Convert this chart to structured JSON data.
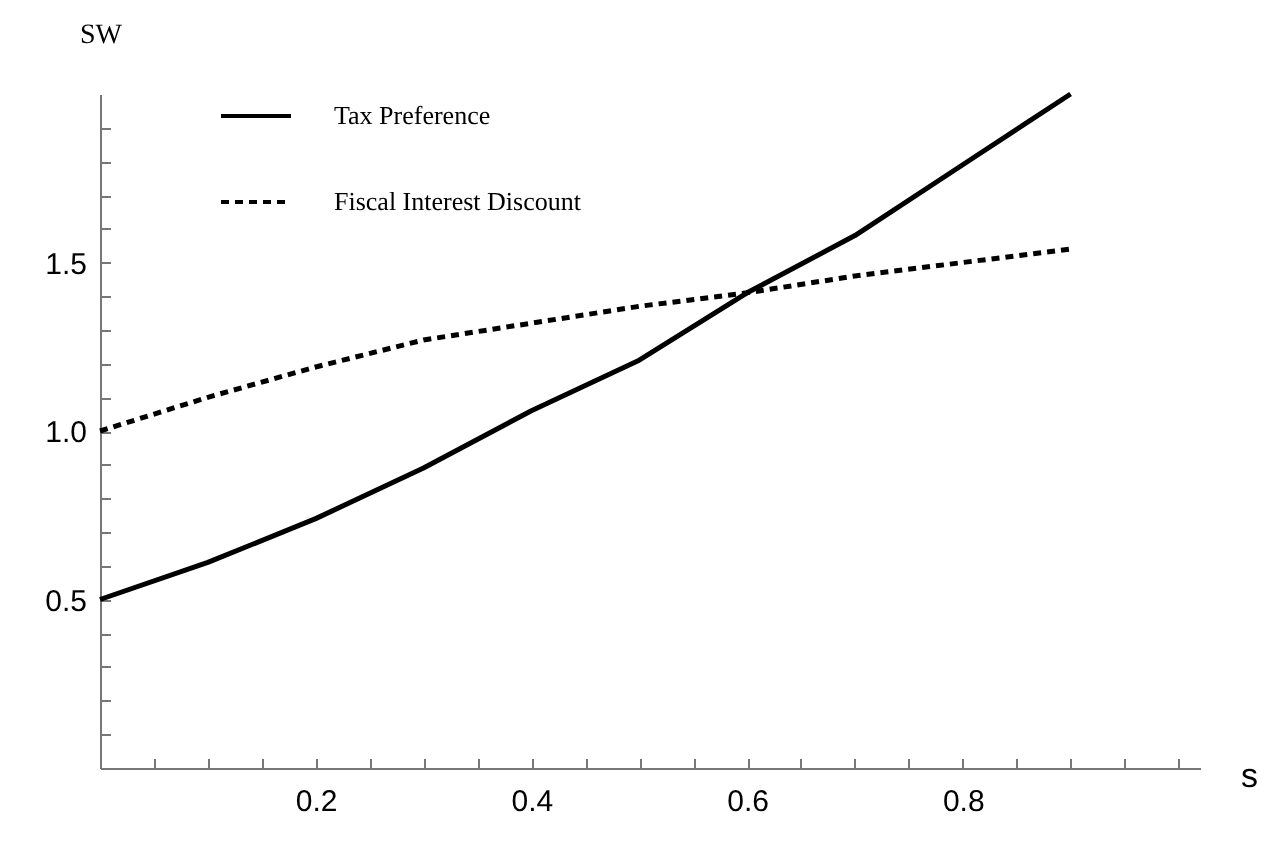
{
  "chart_data": {
    "type": "line",
    "xlabel": "s",
    "ylabel": "SW",
    "x": [
      0,
      0.1,
      0.2,
      0.3,
      0.4,
      0.5,
      0.6,
      0.7,
      0.8,
      0.9
    ],
    "series": [
      {
        "name": "Tax Preference",
        "color": "#000000",
        "line_style": "solid",
        "values": [
          0.5,
          0.61,
          0.74,
          0.89,
          1.06,
          1.21,
          1.41,
          1.58,
          1.79,
          2.0
        ]
      },
      {
        "name": "Fiscal Interest Discount",
        "color": "#000000",
        "line_style": "dashed",
        "values": [
          1.0,
          1.1,
          1.19,
          1.27,
          1.32,
          1.37,
          1.41,
          1.46,
          1.5,
          1.54
        ]
      }
    ],
    "xlim": [
      0,
      1.02
    ],
    "ylim": [
      0,
      2.0
    ],
    "xticks": [
      {
        "value": 0.05,
        "label": null
      },
      {
        "value": 0.1,
        "label": null
      },
      {
        "value": 0.15,
        "label": null
      },
      0.2,
      {
        "value": 0.25,
        "label": null
      },
      {
        "value": 0.3,
        "label": null
      },
      {
        "value": 0.35,
        "label": null
      },
      0.4,
      {
        "value": 0.45,
        "label": null
      },
      {
        "value": 0.5,
        "label": null
      },
      {
        "value": 0.55,
        "label": null
      },
      0.6,
      {
        "value": 0.65,
        "label": null
      },
      {
        "value": 0.7,
        "label": null
      },
      {
        "value": 0.75,
        "label": null
      },
      0.8,
      {
        "value": 0.85,
        "label": null
      },
      {
        "value": 0.9,
        "label": null
      },
      {
        "value": 0.95,
        "label": null
      },
      {
        "value": 1.0,
        "label": null
      }
    ],
    "yticks": [
      {
        "value": 0.1,
        "label": null
      },
      {
        "value": 0.2,
        "label": null
      },
      {
        "value": 0.3,
        "label": null
      },
      {
        "value": 0.4,
        "label": null
      },
      {
        "value": 0.5,
        "label": "0.5"
      },
      {
        "value": 0.6,
        "label": null
      },
      {
        "value": 0.7,
        "label": null
      },
      {
        "value": 0.8,
        "label": null
      },
      {
        "value": 0.9,
        "label": null
      },
      {
        "value": 1.0,
        "label": "1.0"
      },
      {
        "value": 1.1,
        "label": null
      },
      {
        "value": 1.2,
        "label": null
      },
      {
        "value": 1.3,
        "label": null
      },
      {
        "value": 1.4,
        "label": null
      },
      {
        "value": 1.5,
        "label": "1.5"
      },
      {
        "value": 1.6,
        "label": null
      },
      {
        "value": 1.7,
        "label": null
      },
      {
        "value": 1.8,
        "label": null
      },
      {
        "value": 1.9,
        "label": null
      }
    ],
    "grid": false,
    "legend": "top left",
    "marker": "none"
  }
}
